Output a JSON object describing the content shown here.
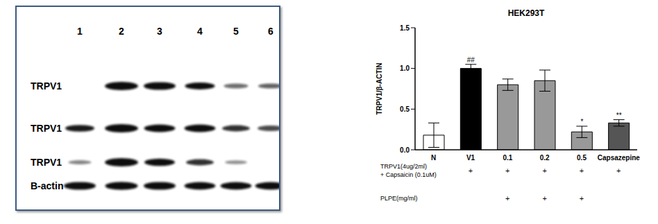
{
  "blot": {
    "lanes": [
      "1",
      "2",
      "3",
      "4",
      "5",
      "6"
    ],
    "rows": [
      {
        "label": "TRPV1",
        "intensity": [
          0,
          1.0,
          0.9,
          0.75,
          0.35,
          0.4
        ]
      },
      {
        "label": "TRPV1",
        "intensity": [
          0.7,
          1.0,
          0.85,
          0.85,
          0.6,
          0.5
        ]
      },
      {
        "label": "TRPV1",
        "intensity": [
          0.25,
          1.0,
          0.8,
          0.6,
          0.2,
          0
        ]
      },
      {
        "label": "B-actin",
        "intensity": [
          0.9,
          0.95,
          0.9,
          0.85,
          0.85,
          0.85
        ]
      }
    ]
  },
  "chart_data": {
    "type": "bar",
    "title": "HEK293T",
    "y_label": "TRPV1/β-ACTIN",
    "categories": [
      "N",
      "V1",
      "0.1",
      "0.2",
      "0.5",
      "Capsazepine"
    ],
    "values": [
      0.18,
      1.0,
      0.8,
      0.85,
      0.22,
      0.33
    ],
    "errors": [
      0.15,
      0.05,
      0.07,
      0.13,
      0.07,
      0.04
    ],
    "colors": [
      "#ffffff",
      "#000000",
      "#999999",
      "#999999",
      "#999999",
      "#555555"
    ],
    "annotations": [
      null,
      "##",
      null,
      null,
      "*",
      "**"
    ],
    "ylim": [
      0,
      1.5
    ],
    "yticks": [
      {
        "value": 0,
        "label": "0.0"
      },
      {
        "value": 0.5,
        "label": "0.5"
      },
      {
        "value": 1,
        "label": "1.0"
      },
      {
        "value": 1.5,
        "label": "1.5"
      }
    ],
    "grid": false,
    "treatment_rows": [
      {
        "label": [
          "TRPV1(4ug/2ml)",
          "+ Capsaicin (0.1uM)"
        ],
        "marks": [
          null,
          "+",
          "+",
          "+",
          "+",
          "+"
        ]
      },
      {
        "label": [
          "PLPE(mg/ml)"
        ],
        "marks": [
          null,
          null,
          "+",
          "+",
          "+",
          null
        ]
      }
    ]
  }
}
